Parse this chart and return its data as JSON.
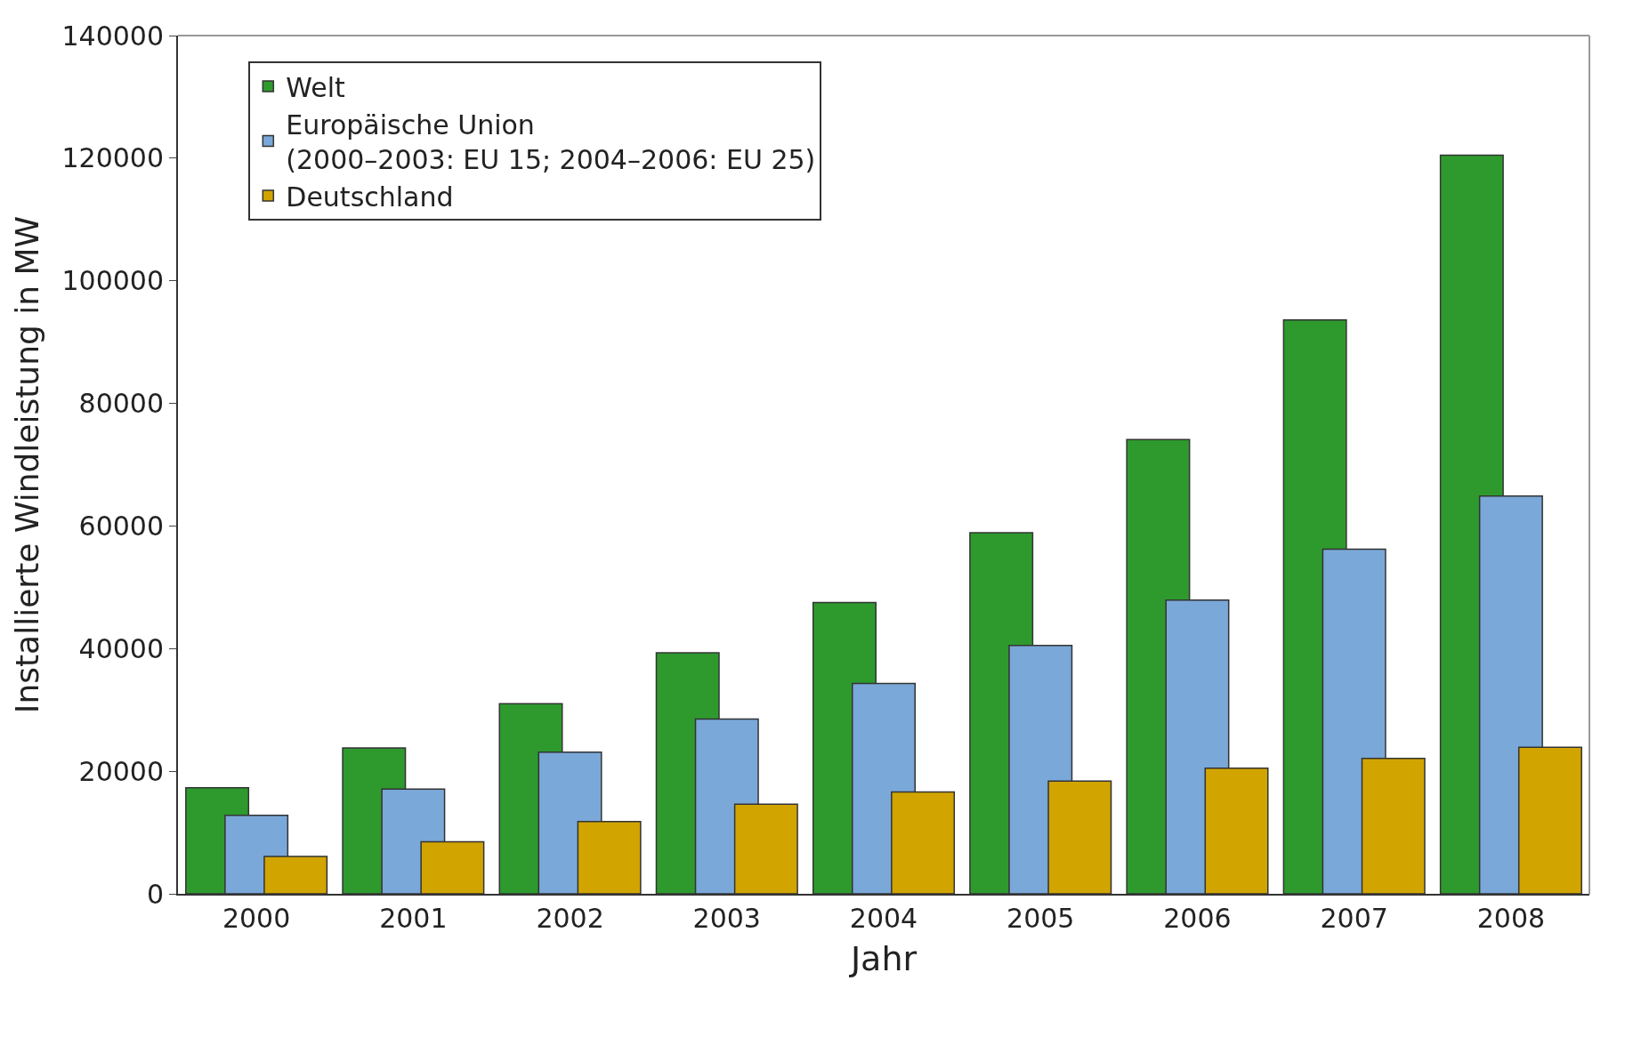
{
  "chart_data": {
    "type": "bar",
    "xlabel": "Jahr",
    "ylabel": "Installierte Windleistung in MW",
    "categories": [
      "2000",
      "2001",
      "2002",
      "2003",
      "2004",
      "2005",
      "2006",
      "2007",
      "2008"
    ],
    "series": [
      {
        "name": "Welt",
        "color": "#2e9a2e",
        "values": [
          17300,
          23800,
          31000,
          39300,
          47500,
          58900,
          74100,
          93600,
          120500
        ]
      },
      {
        "name": "Europäische Union\n(2000–2003: EU 15; 2004–2006: EU 25)",
        "color": "#7aa8d8",
        "values": [
          12800,
          17100,
          23100,
          28500,
          34300,
          40500,
          47900,
          56200,
          64900
        ]
      },
      {
        "name": "Deutschland",
        "color": "#d1a400",
        "values": [
          6100,
          8500,
          11800,
          14600,
          16600,
          18400,
          20500,
          22100,
          23900
        ]
      }
    ],
    "ylim": [
      0,
      140000
    ],
    "yticks": [
      0,
      20000,
      40000,
      60000,
      80000,
      100000,
      120000,
      140000
    ],
    "legend": "top left"
  }
}
